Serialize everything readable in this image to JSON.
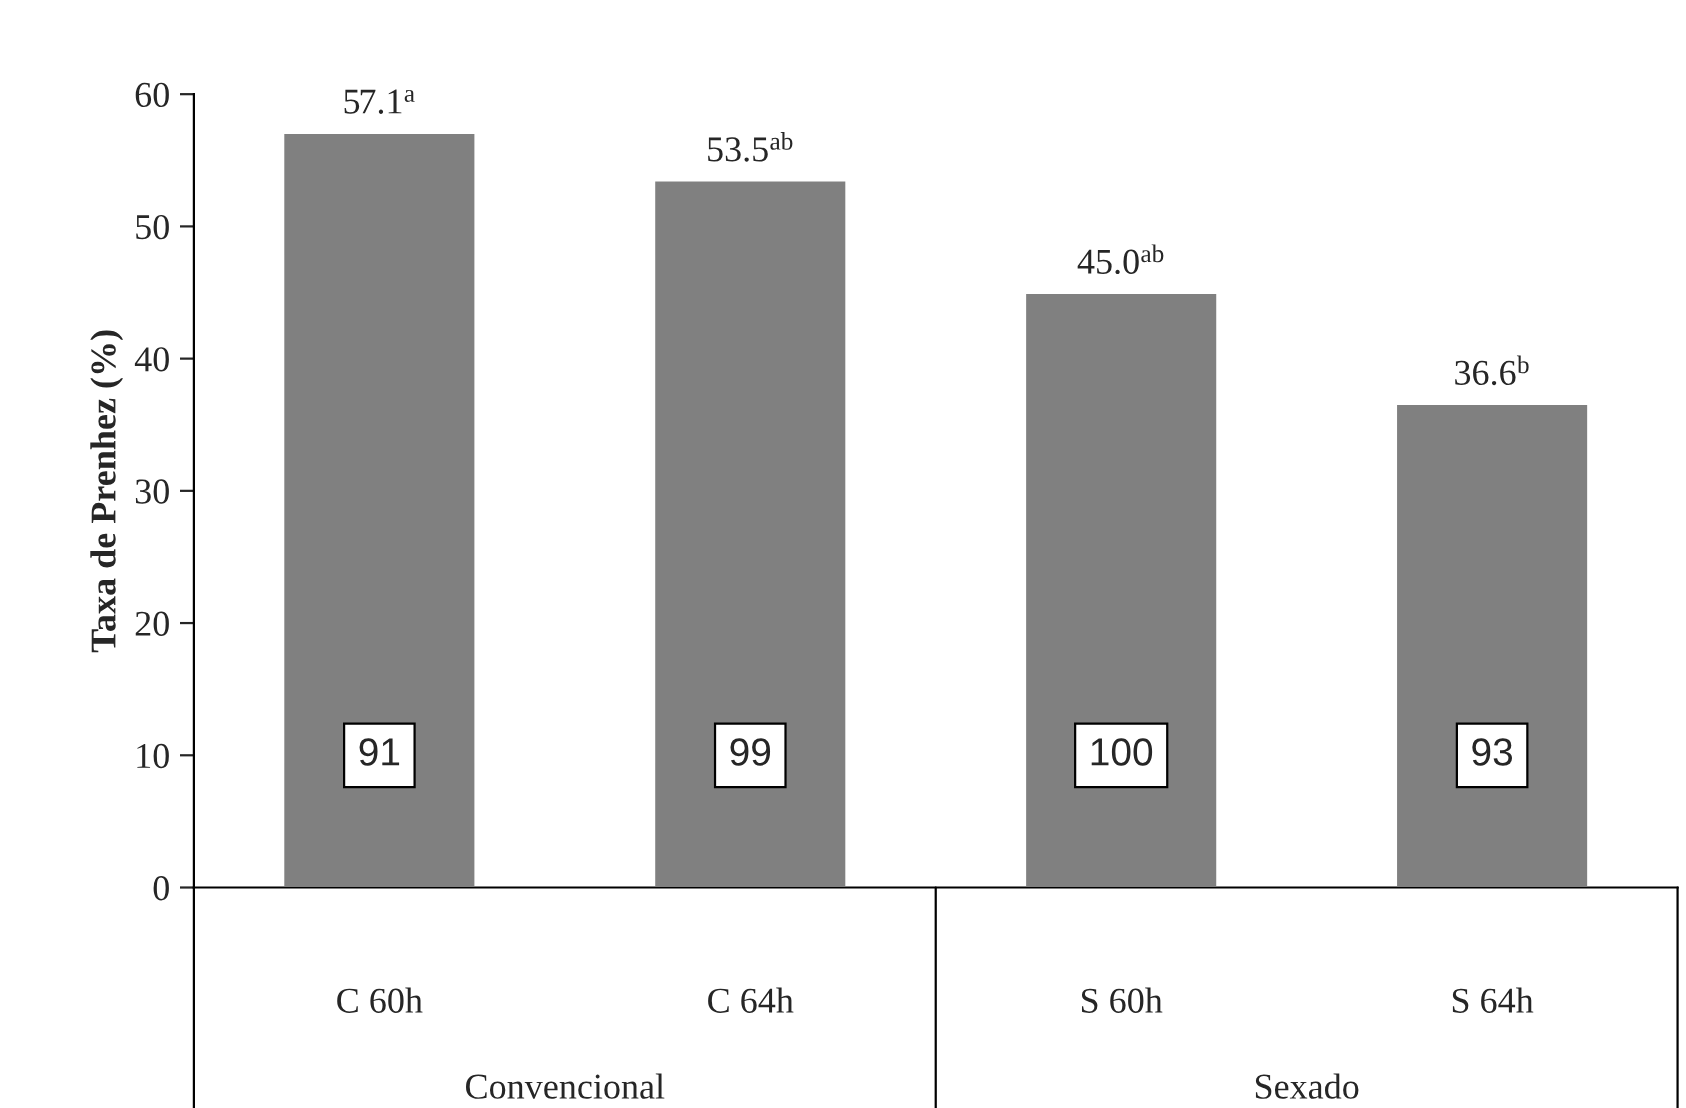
{
  "chart_data": {
    "type": "bar",
    "ylabel": "Taxa de Prenhez (%)",
    "categories": [
      "C 60h",
      "C 64h",
      "S 60h",
      "S 64h"
    ],
    "values": [
      57.1,
      53.5,
      45.0,
      36.6
    ],
    "color": "#808080",
    "value_labels": [
      "57.1$^{a}$",
      "53.5$^{ab}$",
      "45.0$^{ab}$",
      "36.6$^{b}$"
    ],
    "ylim": [
      0,
      60
    ],
    "yticks": [
      0,
      10,
      20,
      30,
      40,
      50,
      60
    ],
    "grid": false,
    "legend": false,
    "annotations": [
      "91",
      "99",
      "100",
      "93",
      "Convencional",
      "Sexado"
    ]
  }
}
